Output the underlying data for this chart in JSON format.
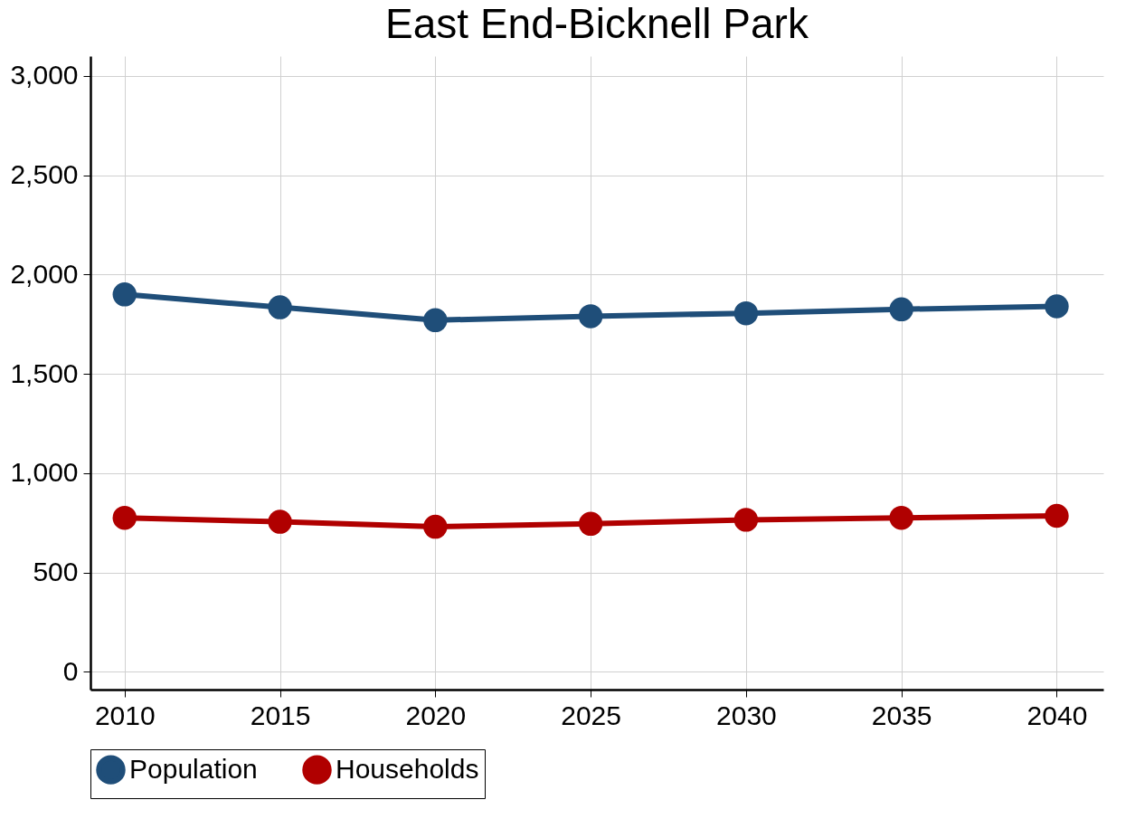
{
  "chart_data": {
    "type": "line",
    "title": "East End-Bicknell Park",
    "x": [
      2010,
      2015,
      2020,
      2025,
      2030,
      2035,
      2040
    ],
    "series": [
      {
        "name": "Population",
        "color": "#1f4e79",
        "values": [
          1900,
          1835,
          1770,
          1790,
          1805,
          1825,
          1840
        ]
      },
      {
        "name": "Households",
        "color": "#b00000",
        "values": [
          775,
          755,
          730,
          745,
          765,
          775,
          785
        ]
      }
    ],
    "xlim": [
      2008.9,
      2041.5
    ],
    "xticks": [
      2010,
      2015,
      2020,
      2025,
      2030,
      2035,
      2040
    ],
    "ylim": [
      -90,
      3100
    ],
    "yticks": [
      {
        "value": 0,
        "label": "0"
      },
      {
        "value": 500,
        "label": "500"
      },
      {
        "value": 1000,
        "label": "1,000"
      },
      {
        "value": 1500,
        "label": "1,500"
      },
      {
        "value": 2000,
        "label": "2,000"
      },
      {
        "value": 2500,
        "label": "2,500"
      },
      {
        "value": 3000,
        "label": "3,000"
      }
    ],
    "grid": true,
    "legend": "bottom",
    "marker": "circle",
    "line_style": "solid"
  }
}
